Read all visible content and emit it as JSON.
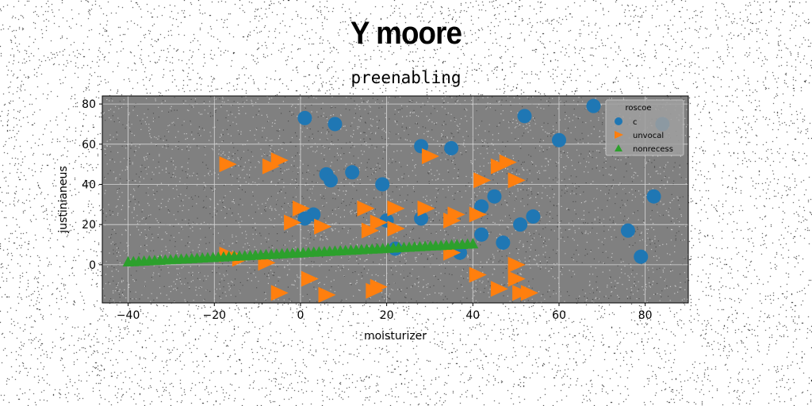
{
  "header": {
    "title": "Y moore",
    "subtitle": "preenabling"
  },
  "chart_data": {
    "type": "scatter",
    "xlabel": "moisturizer",
    "ylabel": "justinianeus",
    "xlim": [
      -46,
      90
    ],
    "ylim": [
      -19,
      84
    ],
    "xticks": [
      -40,
      -20,
      0,
      20,
      40,
      60,
      80
    ],
    "yticks": [
      0,
      20,
      40,
      60,
      80
    ],
    "grid": true,
    "plot_background": "#808080",
    "legend": {
      "title": "roscoe",
      "placement": "top-right"
    },
    "series": [
      {
        "name": "c",
        "marker": "circle",
        "color": "#1f77b4",
        "points": [
          [
            1,
            73
          ],
          [
            8,
            70
          ],
          [
            52,
            74
          ],
          [
            68,
            79
          ],
          [
            60,
            62
          ],
          [
            84,
            70
          ],
          [
            28,
            59
          ],
          [
            35,
            58
          ],
          [
            6,
            45
          ],
          [
            7,
            42
          ],
          [
            12,
            46
          ],
          [
            19,
            40
          ],
          [
            45,
            34
          ],
          [
            82,
            34
          ],
          [
            42,
            29
          ],
          [
            3,
            25
          ],
          [
            1,
            23
          ],
          [
            20,
            22
          ],
          [
            28,
            23
          ],
          [
            54,
            24
          ],
          [
            51,
            20
          ],
          [
            76,
            17
          ],
          [
            42,
            15
          ],
          [
            47,
            11
          ],
          [
            22,
            8
          ],
          [
            79,
            4
          ],
          [
            37,
            6
          ]
        ]
      },
      {
        "name": "unvocal",
        "marker": "triangle-right",
        "color": "#ff7f0e",
        "points": [
          [
            -17,
            50
          ],
          [
            -7,
            49
          ],
          [
            -5,
            52
          ],
          [
            30,
            54
          ],
          [
            46,
            49
          ],
          [
            48,
            51
          ],
          [
            42,
            42
          ],
          [
            50,
            42
          ],
          [
            0,
            28
          ],
          [
            15,
            28
          ],
          [
            22,
            28
          ],
          [
            29,
            28
          ],
          [
            35,
            22
          ],
          [
            36,
            25
          ],
          [
            -2,
            21
          ],
          [
            5,
            19
          ],
          [
            18,
            21
          ],
          [
            22,
            18
          ],
          [
            16,
            17
          ],
          [
            41,
            25
          ],
          [
            35,
            6
          ],
          [
            -17,
            5
          ],
          [
            -8,
            1
          ],
          [
            -14,
            3
          ],
          [
            50,
            0
          ],
          [
            41,
            -5
          ],
          [
            50,
            -7
          ],
          [
            2,
            -7
          ],
          [
            18,
            -11
          ],
          [
            46,
            -12
          ],
          [
            51,
            -14
          ],
          [
            -5,
            -14
          ],
          [
            6,
            -15
          ],
          [
            17,
            -13
          ],
          [
            53,
            -14
          ]
        ]
      },
      {
        "name": "nonrecess",
        "marker": "triangle-up",
        "color": "#2ca02c",
        "line": {
          "x_from": -40,
          "x_to": 40,
          "y_from": 1.5,
          "y_to": 10.5,
          "count": 66
        }
      }
    ]
  }
}
